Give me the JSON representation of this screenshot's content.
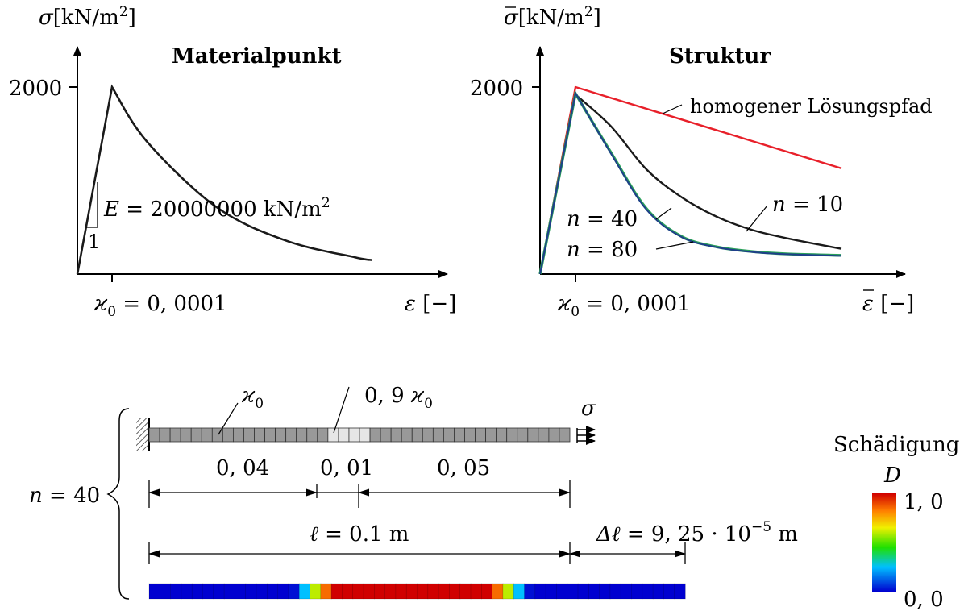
{
  "left_chart": {
    "title": "Materialpunkt",
    "ylabel_sym": "σ",
    "ylabel_unit": "[kN/m",
    "ylabel_sup": "2",
    "ylabel_close": "]",
    "ytick": "2000",
    "xtick_sym": "ϰ",
    "xtick_sub": "0",
    "xtick_val": " = 0, 0001",
    "xlabel_sym": "ε",
    "xlabel_unit": " [−]",
    "E_sym": "E",
    "E_val": " = 20000000  kN/m",
    "E_sup": "2",
    "slope_one": "1"
  },
  "right_chart": {
    "title": "Struktur",
    "ylabel_sym": "σ",
    "ylabel_unit": "[kN/m",
    "ylabel_sup": "2",
    "ylabel_close": "]",
    "ytick": "2000",
    "xtick_sym": "ϰ",
    "xtick_sub": "0",
    "xtick_val": " = 0, 0001",
    "xlabel_sym": "ε",
    "xlabel_unit": " [−]",
    "homogen_label": "homogener Lösungspfad",
    "n10_sym": "n",
    "n10_val": " = 10",
    "n40_sym": "n",
    "n40_val": " = 40",
    "n80_sym": "n",
    "n80_val": " = 80"
  },
  "chart_data": [
    {
      "type": "line",
      "title": "Materialpunkt",
      "xlabel": "ε [−]",
      "ylabel": "σ[kN/m2]",
      "xticks": [
        "ϰ0 = 0, 0001"
      ],
      "yticks": [
        "2000"
      ],
      "annotations": [
        "E = 20000000 kN/m2",
        "1"
      ],
      "series": [
        {
          "x": [
            0,
            0.0001,
            0.0002,
            0.0004,
            0.0006,
            0.0008,
            0.00085
          ],
          "y": [
            0,
            2000,
            1420,
            720,
            360,
            180,
            150
          ]
        }
      ]
    },
    {
      "type": "line",
      "title": "Struktur",
      "xlabel": "ε̄ [−]",
      "ylabel": "σ̄[kN/m2]",
      "xticks": [
        "ϰ0 = 0, 0001"
      ],
      "yticks": [
        "2000"
      ],
      "series": [
        {
          "name": "homogener Lösungspfad",
          "color": "#e8202a",
          "x": [
            0,
            0.0001,
            0.00085
          ],
          "y": [
            0,
            2000,
            1130
          ]
        },
        {
          "name": "n = 10",
          "color": "#1a1a1a",
          "x": [
            0,
            0.0001,
            0.0002,
            0.0003,
            0.0004,
            0.0005,
            0.0006,
            0.0007,
            0.00085
          ],
          "y": [
            0,
            1920,
            1580,
            1120,
            820,
            610,
            470,
            380,
            270
          ]
        },
        {
          "name": "n = 40",
          "color": "#2aa05a",
          "x": [
            0,
            0.0001,
            0.0002,
            0.0003,
            0.0004,
            0.0005,
            0.0006,
            0.0007,
            0.00085
          ],
          "y": [
            0,
            1930,
            1300,
            700,
            400,
            290,
            240,
            215,
            200
          ]
        },
        {
          "name": "n = 80",
          "color": "#1f3f8a",
          "x": [
            0,
            0.0001,
            0.0002,
            0.0003,
            0.0004,
            0.0005,
            0.0006,
            0.0007,
            0.00085
          ],
          "y": [
            0,
            1935,
            1290,
            690,
            395,
            285,
            235,
            212,
            195
          ]
        }
      ]
    }
  ],
  "bar_model": {
    "n_sym": "n",
    "n_val": " = 40",
    "kappa_sym": "ϰ",
    "kappa_sub": "0",
    "kappa2_pre": "0, 9 ",
    "kappa2_sym": "ϰ",
    "kappa2_sub": "0",
    "sigma_sym": "σ",
    "dim1": "0, 04",
    "dim2": "0, 01",
    "dim3": "0, 05",
    "ell_sym": "ℓ",
    "ell_val": " = 0.1  m",
    "dell_sym": "Δℓ",
    "dell_val": " = 9, 25 · 10",
    "dell_exp": "−5",
    "dell_unit": " m",
    "element_count": 40,
    "weak_elements": [
      17,
      18,
      19,
      20
    ],
    "colors": {
      "element": "#999999",
      "weak": "#e6e6e6"
    }
  },
  "legend": {
    "title": "Schädigung",
    "symbol": "D",
    "max_label": "1, 0",
    "min_label": "0, 0"
  },
  "damage_profile": {
    "count": 50,
    "values": [
      0,
      0,
      0,
      0,
      0,
      0,
      0,
      0,
      0,
      0,
      0,
      0,
      0,
      0.02,
      0.25,
      0.6,
      0.85,
      1,
      1,
      1,
      1,
      1,
      1,
      1,
      1,
      1,
      1,
      1,
      1,
      1,
      1,
      1,
      0.85,
      0.6,
      0.25,
      0.02,
      0,
      0,
      0,
      0,
      0,
      0,
      0,
      0,
      0,
      0,
      0,
      0,
      0,
      0
    ]
  }
}
